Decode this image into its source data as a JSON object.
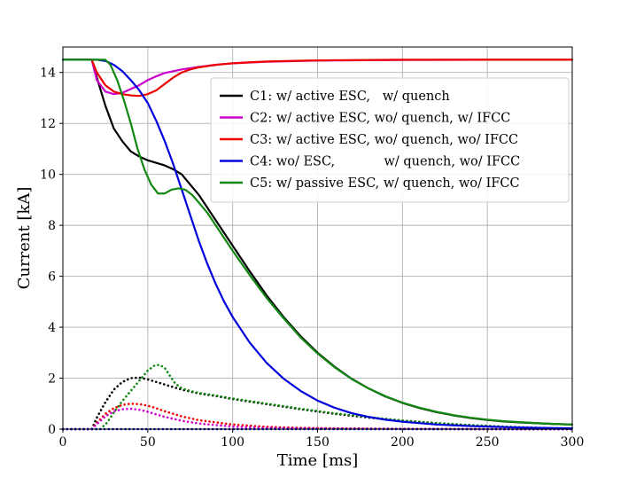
{
  "chart_data": {
    "type": "line",
    "xlabel": "Time [ms]",
    "ylabel": "Current [kA]",
    "xlim": [
      0,
      300
    ],
    "ylim": [
      0,
      15
    ],
    "xticks": [
      0,
      50,
      100,
      150,
      200,
      250,
      300
    ],
    "yticks": [
      0,
      2,
      4,
      6,
      8,
      10,
      12,
      14
    ],
    "grid": true,
    "legend_position": "upper-right",
    "legend": [
      {
        "key": "C1",
        "label": "C1: w/ active ESC,   w/ quench",
        "color": "#000000"
      },
      {
        "key": "C2",
        "label": "C2: w/ active ESC, wo/ quench, w/ IFCC",
        "color": "#cc00cc"
      },
      {
        "key": "C3",
        "label": "C3: w/ active ESC, wo/ quench, wo/ IFCC",
        "color": "#ee0000"
      },
      {
        "key": "C4",
        "label": "C4: wo/ ESC,            w/ quench, wo/ IFCC",
        "color": "#0000dd"
      },
      {
        "key": "C5",
        "label": "C5: w/ passive ESC, w/ quench, wo/ IFCC",
        "color": "#118811"
      }
    ],
    "series": [
      {
        "name": "C1",
        "style": "solid",
        "color": "#000000",
        "x": [
          0,
          17,
          20,
          25,
          30,
          35,
          40,
          45,
          50,
          55,
          60,
          65,
          70,
          75,
          80,
          85,
          90,
          100,
          110,
          120,
          130,
          140,
          150,
          160,
          170,
          180,
          190,
          200,
          210,
          220,
          230,
          240,
          250,
          260,
          270,
          280,
          290,
          300
        ],
        "y": [
          14.5,
          14.5,
          13.8,
          12.7,
          11.8,
          11.3,
          10.9,
          10.7,
          10.55,
          10.45,
          10.35,
          10.2,
          10.0,
          9.6,
          9.2,
          8.7,
          8.2,
          7.2,
          6.2,
          5.25,
          4.4,
          3.65,
          3.0,
          2.45,
          1.98,
          1.6,
          1.28,
          1.03,
          0.83,
          0.67,
          0.54,
          0.44,
          0.36,
          0.3,
          0.26,
          0.23,
          0.2,
          0.18
        ]
      },
      {
        "name": "C2",
        "style": "solid",
        "color": "#cc00cc",
        "x": [
          0,
          17,
          20,
          25,
          30,
          35,
          40,
          45,
          50,
          55,
          60,
          70,
          80,
          90,
          100,
          120,
          150,
          200,
          250,
          300
        ],
        "y": [
          14.5,
          14.5,
          13.7,
          13.25,
          13.15,
          13.2,
          13.35,
          13.5,
          13.7,
          13.85,
          13.98,
          14.12,
          14.22,
          14.3,
          14.36,
          14.42,
          14.47,
          14.49,
          14.5,
          14.5
        ]
      },
      {
        "name": "C3",
        "style": "solid",
        "color": "#ee0000",
        "x": [
          0,
          17,
          20,
          25,
          30,
          35,
          40,
          45,
          50,
          55,
          60,
          65,
          70,
          75,
          80,
          90,
          100,
          110,
          120,
          140,
          160,
          200,
          250,
          300
        ],
        "y": [
          14.5,
          14.5,
          14.0,
          13.5,
          13.25,
          13.15,
          13.1,
          13.08,
          13.15,
          13.3,
          13.55,
          13.8,
          14.0,
          14.12,
          14.2,
          14.3,
          14.36,
          14.4,
          14.43,
          14.46,
          14.48,
          14.5,
          14.5,
          14.5
        ]
      },
      {
        "name": "C4",
        "style": "solid",
        "color": "#0000dd",
        "x": [
          0,
          15,
          20,
          25,
          30,
          35,
          40,
          45,
          50,
          55,
          60,
          65,
          70,
          75,
          80,
          85,
          90,
          95,
          100,
          110,
          120,
          130,
          140,
          150,
          160,
          170,
          180,
          190,
          200,
          220,
          240,
          260,
          280,
          300
        ],
        "y": [
          14.5,
          14.5,
          14.5,
          14.45,
          14.3,
          14.05,
          13.7,
          13.3,
          12.8,
          12.1,
          11.3,
          10.4,
          9.4,
          8.4,
          7.4,
          6.5,
          5.7,
          5.0,
          4.4,
          3.4,
          2.6,
          1.98,
          1.5,
          1.12,
          0.84,
          0.63,
          0.48,
          0.37,
          0.29,
          0.18,
          0.12,
          0.08,
          0.05,
          0.03
        ]
      },
      {
        "name": "C5",
        "style": "solid",
        "color": "#118811",
        "x": [
          0,
          25,
          28,
          32,
          36,
          40,
          44,
          48,
          52,
          56,
          60,
          64,
          68,
          72,
          76,
          80,
          85,
          90,
          100,
          110,
          120,
          130,
          140,
          150,
          160,
          170,
          180,
          190,
          200,
          210,
          220,
          230,
          240,
          250,
          260,
          270,
          280,
          290,
          300
        ],
        "y": [
          14.5,
          14.5,
          14.3,
          13.7,
          12.9,
          12.0,
          11.0,
          10.2,
          9.6,
          9.25,
          9.25,
          9.4,
          9.45,
          9.4,
          9.2,
          8.9,
          8.5,
          8.0,
          7.0,
          6.05,
          5.15,
          4.35,
          3.6,
          2.97,
          2.43,
          1.97,
          1.6,
          1.29,
          1.04,
          0.84,
          0.68,
          0.55,
          0.45,
          0.37,
          0.31,
          0.27,
          0.23,
          0.2,
          0.18
        ]
      },
      {
        "name": "C1 dotted",
        "style": "dotted",
        "color": "#000000",
        "x": [
          0,
          17,
          20,
          25,
          30,
          35,
          40,
          45,
          50,
          55,
          60,
          70,
          80,
          90,
          100,
          120,
          140,
          160,
          180,
          200,
          220,
          240,
          260,
          280,
          300
        ],
        "y": [
          0,
          0,
          0.45,
          1.05,
          1.55,
          1.85,
          2.0,
          2.02,
          1.95,
          1.85,
          1.75,
          1.55,
          1.4,
          1.3,
          1.18,
          0.98,
          0.78,
          0.6,
          0.45,
          0.33,
          0.23,
          0.15,
          0.09,
          0.05,
          0.02
        ]
      },
      {
        "name": "C5 dotted",
        "style": "dotted",
        "color": "#118811",
        "x": [
          0,
          22,
          26,
          30,
          35,
          40,
          45,
          50,
          54,
          57,
          60,
          63,
          66,
          70,
          75,
          80,
          90,
          100,
          120,
          140,
          160,
          180,
          200,
          220,
          240,
          260,
          280,
          300
        ],
        "y": [
          0,
          0,
          0.25,
          0.65,
          1.1,
          1.5,
          1.9,
          2.3,
          2.5,
          2.52,
          2.4,
          2.1,
          1.8,
          1.6,
          1.5,
          1.42,
          1.32,
          1.2,
          1.0,
          0.8,
          0.62,
          0.47,
          0.34,
          0.24,
          0.16,
          0.1,
          0.05,
          0.02
        ]
      },
      {
        "name": "C3 dotted",
        "style": "dotted",
        "color": "#ee0000",
        "x": [
          0,
          17,
          20,
          25,
          30,
          35,
          40,
          45,
          50,
          55,
          60,
          70,
          80,
          100,
          120,
          140,
          160,
          180,
          200,
          250,
          300
        ],
        "y": [
          0,
          0,
          0.25,
          0.6,
          0.82,
          0.95,
          1.0,
          0.98,
          0.92,
          0.82,
          0.7,
          0.5,
          0.35,
          0.18,
          0.09,
          0.05,
          0.03,
          0.02,
          0.01,
          0.0,
          0.0
        ]
      },
      {
        "name": "C2 dotted",
        "style": "dotted",
        "color": "#cc00cc",
        "x": [
          0,
          17,
          20,
          25,
          30,
          35,
          40,
          45,
          50,
          55,
          60,
          70,
          80,
          100,
          120,
          140,
          160,
          200,
          250,
          300
        ],
        "y": [
          0,
          0,
          0.2,
          0.5,
          0.7,
          0.78,
          0.8,
          0.76,
          0.68,
          0.58,
          0.48,
          0.33,
          0.22,
          0.1,
          0.05,
          0.03,
          0.02,
          0.01,
          0.0,
          0.0
        ]
      },
      {
        "name": "C4 dotted",
        "style": "dotted",
        "color": "#0000dd",
        "x": [
          0,
          300
        ],
        "y": [
          0,
          0
        ]
      }
    ]
  }
}
